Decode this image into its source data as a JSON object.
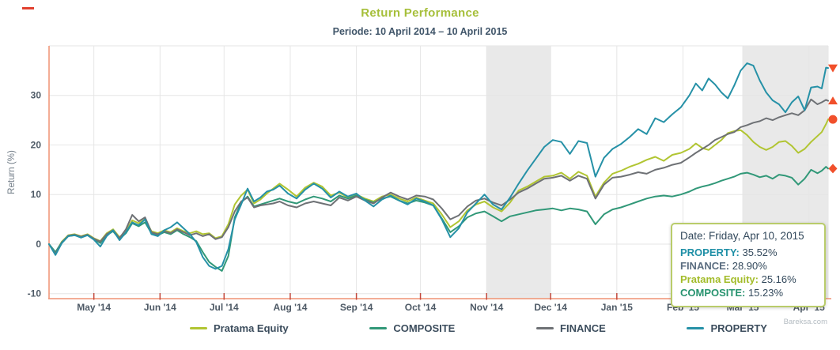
{
  "header": {
    "title": "Return Performance",
    "subtitle": "Periode: 10 April 2014 – 10 April 2015",
    "title_color": "#a6bf3a",
    "subtitle_color": "#41566a"
  },
  "watermark": "Bareksa.com",
  "tooltip": {
    "date_line": "Date: Friday, Apr 10, 2015",
    "rows": [
      {
        "label": "PROPERTY",
        "value": "35.52%",
        "color": "#1e8fa6"
      },
      {
        "label": "FINANCE",
        "value": "28.90%",
        "color": "#5b6d80"
      },
      {
        "label": "Pratama Equity",
        "value": "25.16%",
        "color": "#a3bc2a"
      },
      {
        "label": "COMPOSITE",
        "value": "15.23%",
        "color": "#27936f"
      }
    ]
  },
  "legend": {
    "items": [
      {
        "label": "Pratama Equity",
        "color": "#b1c532"
      },
      {
        "label": "COMPOSITE",
        "color": "#319878"
      },
      {
        "label": "FINANCE",
        "color": "#6e7175"
      },
      {
        "label": "PROPERTY",
        "color": "#2691a7"
      }
    ]
  },
  "chart_data": {
    "type": "line",
    "title": "Return Performance",
    "subtitle": "Periode: 10 April 2014 – 10 April 2015",
    "ylabel": "Return (%)",
    "ylim": [
      -11,
      40
    ],
    "y_ticks": [
      -10,
      0,
      10,
      20,
      30
    ],
    "x_range_days": 365,
    "x_ticks": [
      {
        "day": 21,
        "label": "May '14"
      },
      {
        "day": 52,
        "label": "Jun '14"
      },
      {
        "day": 82,
        "label": "Jul '14"
      },
      {
        "day": 113,
        "label": "Aug '14"
      },
      {
        "day": 144,
        "label": "Sep '14"
      },
      {
        "day": 174,
        "label": "Oct '14"
      },
      {
        "day": 205,
        "label": "Nov '14"
      },
      {
        "day": 235,
        "label": "Dec '14"
      },
      {
        "day": 266,
        "label": "Jan '15"
      },
      {
        "day": 297,
        "label": "Feb '15"
      },
      {
        "day": 325,
        "label": "Mar '15"
      },
      {
        "day": 356,
        "label": "Apr '15"
      }
    ],
    "plot_bands_days": [
      [
        205,
        235
      ],
      [
        325,
        365
      ]
    ],
    "grid_color": "#e6e6e6",
    "band_color": "#e9e9e9",
    "axis_line_color": "#ef9273",
    "tick_color": "#c4493c",
    "marker_color": "#f1502b",
    "days": [
      0,
      3,
      6,
      9,
      12,
      15,
      18,
      21,
      24,
      27,
      30,
      33,
      36,
      39,
      42,
      45,
      48,
      51,
      54,
      57,
      60,
      63,
      66,
      69,
      72,
      75,
      78,
      81,
      84,
      87,
      90,
      93,
      96,
      99,
      102,
      105,
      108,
      112,
      116,
      120,
      124,
      128,
      132,
      136,
      140,
      144,
      148,
      152,
      156,
      160,
      164,
      168,
      172,
      176,
      180,
      184,
      188,
      192,
      196,
      200,
      204,
      208,
      212,
      216,
      220,
      224,
      228,
      232,
      236,
      240,
      244,
      248,
      252,
      256,
      260,
      264,
      268,
      272,
      276,
      280,
      284,
      288,
      292,
      296,
      300,
      303,
      306,
      309,
      312,
      315,
      318,
      321,
      324,
      327,
      330,
      333,
      336,
      339,
      342,
      345,
      348,
      351,
      354,
      357,
      360,
      362,
      364,
      365
    ],
    "series": [
      {
        "name": "Pratama Equity",
        "color": "#b1c532",
        "end_marker": "circle",
        "final": 25.16,
        "values": [
          0,
          -1.8,
          0.5,
          1.8,
          2.0,
          1.6,
          2.0,
          1.2,
          0.6,
          2.2,
          3.0,
          1.4,
          2.6,
          4.8,
          4.2,
          5.0,
          2.6,
          2.2,
          2.8,
          2.4,
          3.2,
          2.6,
          2.2,
          2.6,
          2.0,
          2.2,
          1.2,
          1.6,
          4.0,
          8.0,
          9.8,
          11.0,
          8.2,
          9.0,
          10.2,
          11.2,
          12.2,
          11.0,
          9.6,
          11.4,
          12.4,
          11.6,
          9.8,
          10.4,
          9.4,
          10.0,
          9.2,
          8.6,
          9.6,
          10.0,
          9.2,
          8.6,
          9.4,
          8.8,
          8.2,
          6.0,
          3.4,
          4.6,
          6.8,
          8.0,
          8.6,
          7.4,
          6.6,
          8.4,
          10.8,
          11.6,
          12.6,
          13.6,
          13.8,
          14.4,
          13.2,
          14.6,
          13.8,
          9.6,
          12.4,
          14.2,
          14.8,
          15.6,
          16.2,
          17.0,
          17.6,
          16.8,
          18.0,
          18.4,
          19.2,
          20.3,
          19.4,
          19.0,
          20.0,
          21.0,
          22.4,
          22.8,
          23.0,
          22.0,
          20.6,
          19.6,
          19.0,
          19.6,
          20.6,
          20.8,
          19.8,
          18.4,
          19.2,
          20.6,
          21.8,
          22.6,
          24.2,
          25.16
        ]
      },
      {
        "name": "COMPOSITE",
        "color": "#319878",
        "end_marker": "diamond",
        "final": 15.23,
        "values": [
          0,
          -1.6,
          0.4,
          1.6,
          1.8,
          1.4,
          1.8,
          1.0,
          0.2,
          1.8,
          2.6,
          1.0,
          2.2,
          4.2,
          3.6,
          4.4,
          2.2,
          1.8,
          2.4,
          2.0,
          2.8,
          2.0,
          1.4,
          0.6,
          -1.6,
          -3.6,
          -4.6,
          -5.4,
          -2.4,
          5.4,
          8.4,
          9.6,
          7.6,
          8.0,
          8.4,
          8.8,
          9.2,
          8.6,
          8.2,
          9.0,
          9.6,
          9.2,
          8.6,
          9.8,
          9.2,
          9.8,
          9.0,
          8.4,
          9.2,
          9.6,
          8.8,
          8.2,
          8.8,
          8.4,
          7.8,
          5.2,
          2.4,
          3.6,
          5.4,
          6.2,
          6.6,
          5.6,
          4.6,
          5.6,
          6.0,
          6.4,
          6.8,
          7.0,
          7.2,
          6.8,
          7.2,
          7.0,
          6.6,
          4.0,
          6.0,
          7.0,
          7.4,
          8.0,
          8.6,
          9.2,
          9.6,
          9.8,
          9.6,
          10.0,
          10.6,
          11.2,
          11.6,
          11.9,
          12.3,
          12.8,
          13.2,
          13.6,
          14.2,
          14.4,
          14.0,
          13.5,
          13.8,
          13.2,
          14.0,
          13.8,
          13.4,
          12.0,
          13.2,
          15.0,
          14.3,
          14.8,
          15.6,
          15.23
        ]
      },
      {
        "name": "FINANCE",
        "color": "#6e7175",
        "end_marker": "triangle-up",
        "final": 28.9,
        "values": [
          0,
          -2.0,
          0.3,
          1.7,
          1.9,
          1.5,
          1.9,
          1.1,
          0.5,
          2.0,
          2.8,
          1.2,
          3.0,
          5.9,
          4.6,
          5.4,
          2.4,
          2.0,
          2.6,
          2.2,
          3.0,
          2.4,
          1.8,
          2.2,
          1.6,
          2.0,
          1.0,
          1.4,
          3.4,
          6.6,
          8.6,
          9.4,
          7.4,
          7.8,
          8.0,
          8.2,
          8.6,
          7.8,
          7.4,
          8.2,
          8.6,
          8.2,
          7.8,
          9.4,
          8.8,
          9.6,
          8.8,
          8.2,
          9.4,
          10.4,
          9.6,
          9.0,
          9.8,
          9.6,
          9.0,
          7.2,
          5.0,
          5.8,
          7.6,
          8.8,
          9.2,
          8.4,
          7.8,
          9.0,
          10.4,
          11.2,
          12.2,
          13.2,
          13.4,
          13.8,
          12.8,
          13.8,
          13.2,
          9.2,
          12.0,
          13.4,
          13.6,
          14.0,
          14.5,
          14.2,
          15.0,
          15.4,
          16.0,
          16.4,
          17.5,
          18.4,
          19.2,
          20.0,
          21.0,
          21.6,
          22.2,
          22.6,
          23.6,
          24.0,
          24.5,
          24.8,
          25.4,
          25.0,
          25.6,
          26.0,
          26.4,
          26.0,
          27.0,
          29.2,
          28.2,
          28.6,
          29.1,
          28.9
        ]
      },
      {
        "name": "PROPERTY",
        "color": "#2691a7",
        "end_marker": "triangle-down",
        "final": 35.52,
        "values": [
          0,
          -2.2,
          0.2,
          1.6,
          1.8,
          1.3,
          1.8,
          0.9,
          -0.5,
          1.6,
          2.8,
          0.8,
          2.4,
          4.4,
          3.8,
          5.0,
          2.0,
          1.6,
          2.8,
          3.4,
          4.4,
          3.2,
          2.0,
          0.4,
          -2.6,
          -4.4,
          -5.0,
          -4.4,
          -1.0,
          5.0,
          8.0,
          11.2,
          8.6,
          9.4,
          10.6,
          11.0,
          11.8,
          10.2,
          9.2,
          11.0,
          12.2,
          11.2,
          9.4,
          10.6,
          9.6,
          10.2,
          8.8,
          7.6,
          9.0,
          9.8,
          8.8,
          8.0,
          9.2,
          8.6,
          7.8,
          5.0,
          1.4,
          3.2,
          6.4,
          8.2,
          10.0,
          8.0,
          7.0,
          9.4,
          12.2,
          14.8,
          17.2,
          19.6,
          21.0,
          20.6,
          18.2,
          20.8,
          20.4,
          13.6,
          17.4,
          19.2,
          20.2,
          21.6,
          23.2,
          22.2,
          25.4,
          24.6,
          26.2,
          27.6,
          30.0,
          32.4,
          31.0,
          33.4,
          32.2,
          30.6,
          29.4,
          32.0,
          35.0,
          36.5,
          36.0,
          33.0,
          30.6,
          29.0,
          28.2,
          26.6,
          28.6,
          29.8,
          27.0,
          31.6,
          31.8,
          31.4,
          35.6,
          35.52
        ]
      }
    ]
  }
}
